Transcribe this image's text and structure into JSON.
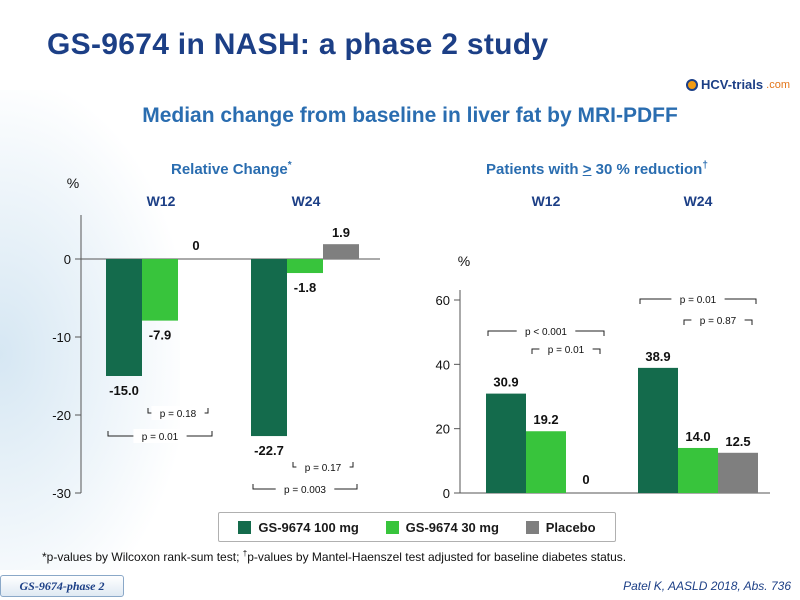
{
  "slide": {
    "title": "GS-9674 in NASH: a phase 2 study",
    "subtitle": "Median change from baseline in liver fat by MRI-PDFF",
    "logo_text": "HCV-trials",
    "logo_tld": ".com",
    "footnote_part1": "*p-values by Wilcoxon rank-sum test; ",
    "footnote_dagger": "†",
    "footnote_part2": "p-values by Mantel-Haenszel  test adjusted for baseline diabetes status.",
    "tag": "GS-9674-phase 2",
    "citation": "Patel K, AASLD 2018, Abs. 736"
  },
  "legend": [
    {
      "name": "GS-9674 100 mg",
      "color": "#146b4c"
    },
    {
      "name": "GS-9674 30 mg",
      "color": "#38c43c"
    },
    {
      "name": "Placebo",
      "color": "#7f7f7f"
    }
  ],
  "chart_data": [
    {
      "type": "bar",
      "title": "Relative Change",
      "title_mark": "*",
      "ylabel": "%",
      "ylim": [
        -30,
        5
      ],
      "yticks": [
        0,
        -10,
        -20,
        -30
      ],
      "categories": [
        "W12",
        "W24"
      ],
      "series": [
        {
          "name": "GS-9674 100 mg",
          "values": [
            -15.0,
            -22.7
          ],
          "labels": [
            "-15.0",
            "-22.7"
          ]
        },
        {
          "name": "GS-9674 30 mg",
          "values": [
            -7.9,
            -1.8
          ],
          "labels": [
            "-7.9",
            "-1.8"
          ]
        },
        {
          "name": "Placebo",
          "values": [
            0,
            1.9
          ],
          "labels": [
            "0",
            "1.9"
          ]
        }
      ],
      "annotations": [
        {
          "text": "p = 0.18",
          "group": 0,
          "from_series": 1,
          "to_series": 2,
          "level": 1
        },
        {
          "text": "p = 0.01",
          "group": 0,
          "from_series": 0,
          "to_series": 2,
          "level": 2
        },
        {
          "text": "p = 0.17",
          "group": 1,
          "from_series": 1,
          "to_series": 2,
          "level": 1
        },
        {
          "text": "p = 0.003",
          "group": 1,
          "from_series": 0,
          "to_series": 2,
          "level": 2
        }
      ]
    },
    {
      "type": "bar",
      "title_pre": "Patients with ",
      "title_ge": ">",
      "title_post": " 30 % reduction",
      "title_mark": "†",
      "ylabel": "%",
      "ylim": [
        0,
        60
      ],
      "yticks": [
        0,
        20,
        40,
        60
      ],
      "categories": [
        "W12",
        "W24"
      ],
      "series": [
        {
          "name": "GS-9674 100 mg",
          "values": [
            30.9,
            38.9
          ],
          "labels": [
            "30.9",
            "38.9"
          ]
        },
        {
          "name": "GS-9674 30 mg",
          "values": [
            19.2,
            14.0
          ],
          "labels": [
            "19.2",
            "14.0"
          ]
        },
        {
          "name": "Placebo",
          "values": [
            0,
            12.5
          ],
          "labels": [
            "0",
            "12.5"
          ]
        }
      ],
      "annotations": [
        {
          "text": "p < 0.001",
          "group": 0,
          "from_series": 0,
          "to_series": 2,
          "level": 2
        },
        {
          "text": "p = 0.01",
          "group": 0,
          "from_series": 1,
          "to_series": 2,
          "level": 1
        },
        {
          "text": "p = 0.01",
          "group": 1,
          "from_series": 0,
          "to_series": 2,
          "level": 2
        },
        {
          "text": "p = 0.87",
          "group": 1,
          "from_series": 1,
          "to_series": 2,
          "level": 1
        }
      ]
    }
  ]
}
